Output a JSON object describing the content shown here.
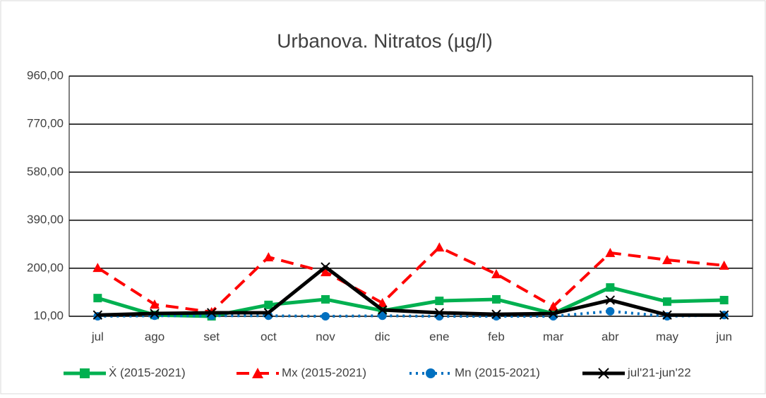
{
  "chart_data": {
    "type": "line",
    "title": "Urbanova. Nitratos (µg/l)",
    "categories": [
      "jul",
      "ago",
      "set",
      "oct",
      "nov",
      "dic",
      "ene",
      "feb",
      "mar",
      "abr",
      "may",
      "jun"
    ],
    "series": [
      {
        "name": "Ẋ (2015-2021)",
        "color": "#00b050",
        "marker": "square",
        "dash": "solid",
        "values": [
          82,
          15,
          10,
          55,
          77,
          32,
          71,
          77,
          21,
          124,
          68,
          74
        ]
      },
      {
        "name": "Mx (2015-2021)",
        "color": "#ff0000",
        "marker": "triangle",
        "dash": "dashed",
        "values": [
          202,
          57,
          27,
          244,
          185,
          63,
          283,
          177,
          49,
          261,
          233,
          211
        ]
      },
      {
        "name": "Mn (2015-2021)",
        "color": "#0070c0",
        "marker": "circle",
        "dash": "dotted",
        "values": [
          10,
          12,
          12,
          12,
          10,
          12,
          10,
          10,
          10,
          30,
          10,
          15
        ]
      },
      {
        "name": "jul'21-jun'22",
        "color": "#000000",
        "marker": "cross",
        "dash": "solid",
        "values": [
          15,
          21,
          24,
          24,
          205,
          35,
          24,
          18,
          21,
          74,
          15,
          15
        ]
      }
    ],
    "ylim": [
      10,
      960
    ],
    "yticks": [
      {
        "value": 10,
        "label": "10,00"
      },
      {
        "value": 200,
        "label": "200,00"
      },
      {
        "value": 390,
        "label": "390,00"
      },
      {
        "value": 580,
        "label": "580,00"
      },
      {
        "value": 770,
        "label": "770,00"
      },
      {
        "value": 960,
        "label": "960,00"
      }
    ],
    "grid": true,
    "legend": "bottom"
  }
}
